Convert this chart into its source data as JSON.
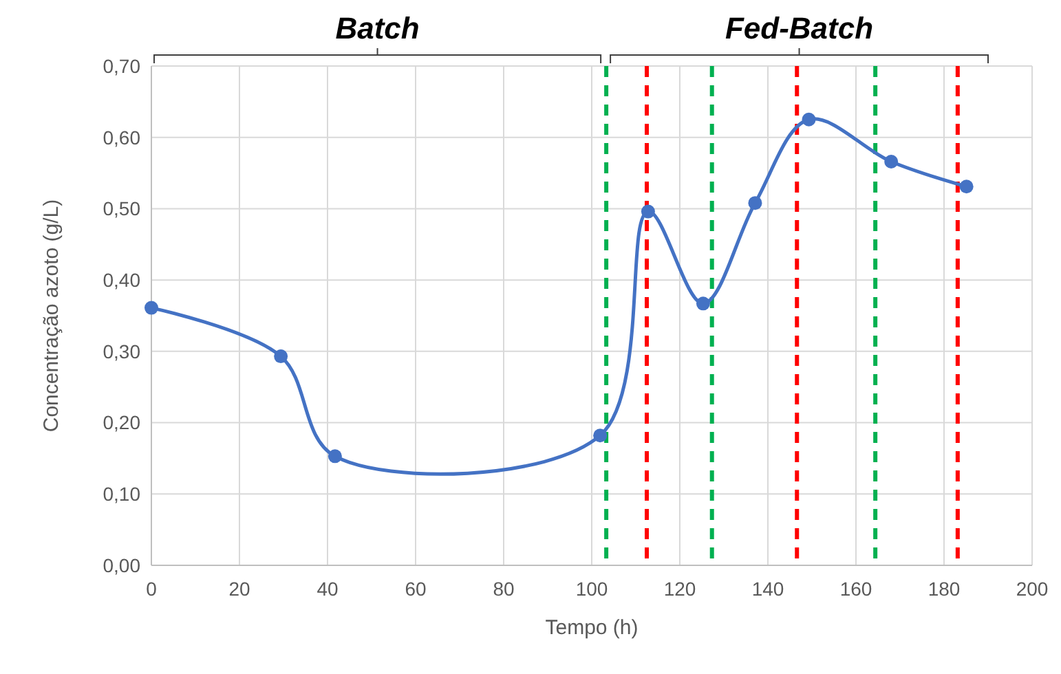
{
  "chart_data": {
    "type": "line",
    "xlabel": "Tempo (h)",
    "ylabel": "Concentração azoto (g/L)",
    "x": [
      0,
      29.4,
      41.7,
      101.9,
      112.8,
      125.3,
      137.1,
      149.3,
      168,
      185.1
    ],
    "series": [
      {
        "color": "#4472c4",
        "values": [
          0.361,
          0.293,
          0.153,
          0.182,
          0.496,
          0.367,
          0.508,
          0.625,
          0.566,
          0.531
        ]
      }
    ],
    "xlim": [
      0,
      200
    ],
    "xticks": [
      0,
      20,
      40,
      60,
      80,
      100,
      120,
      140,
      160,
      180,
      200
    ],
    "ylim": [
      0,
      0.7
    ],
    "yticks": [
      {
        "value": 0,
        "label": "0,00"
      },
      {
        "value": 0.1,
        "label": "0,10"
      },
      {
        "value": 0.2,
        "label": "0,20"
      },
      {
        "value": 0.3,
        "label": "0,30"
      },
      {
        "value": 0.4,
        "label": "0,40"
      },
      {
        "value": 0.5,
        "label": "0,50"
      },
      {
        "value": 0.6,
        "label": "0,60"
      },
      {
        "value": 0.7,
        "label": "0,70"
      }
    ],
    "grid": true,
    "marker": "circle",
    "line_style": "solid",
    "ref_lines": [
      {
        "axis": "x",
        "value": 103.3,
        "color": "#00b050",
        "line_style": "dashed"
      },
      {
        "axis": "x",
        "value": 112.5,
        "color": "#ff0000",
        "line_style": "dashed"
      },
      {
        "axis": "x",
        "value": 127.3,
        "color": "#00b050",
        "line_style": "dashed"
      },
      {
        "axis": "x",
        "value": 146.6,
        "color": "#ff0000",
        "line_style": "dashed"
      },
      {
        "axis": "x",
        "value": 164.4,
        "color": "#00b050",
        "line_style": "dashed"
      },
      {
        "axis": "x",
        "value": 183.1,
        "color": "#ff0000",
        "line_style": "dashed"
      }
    ],
    "annotations": [
      "Batch",
      "Fed-Batch"
    ]
  }
}
